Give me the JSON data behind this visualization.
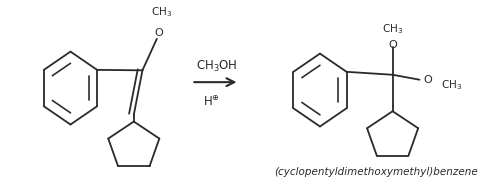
{
  "figure_width": 4.99,
  "figure_height": 1.85,
  "dpi": 100,
  "background_color": "#ffffff",
  "line_color": "#2a2a2a",
  "line_width": 1.3,
  "reagent_text": "CH$_3$OH",
  "catalyst_text": "H$^{\\oplus}$",
  "product_label": "(cyclopentyldimethoxymethyl)benzene",
  "label_fontsize": 7.5
}
